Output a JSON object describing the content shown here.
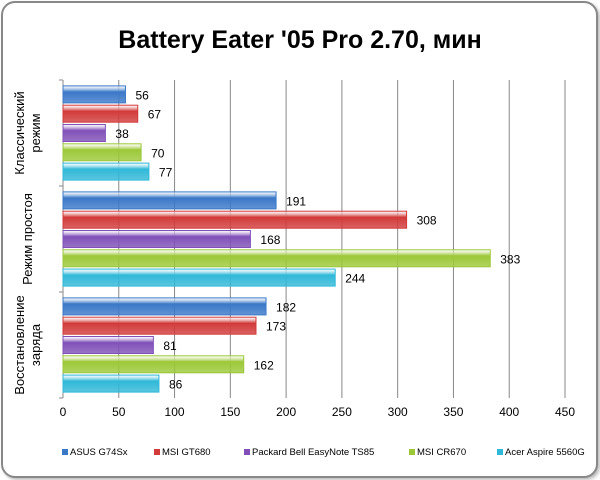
{
  "chart_data": {
    "type": "bar",
    "orientation": "horizontal",
    "title": "Battery Eater '05 Pro 2.70, мин",
    "categories": [
      "Классический режим",
      "Режим простоя",
      "Восстановление заряда"
    ],
    "category_lines": [
      [
        "Классический",
        "режим"
      ],
      [
        "Режим простоя"
      ],
      [
        "Восстановление",
        "заряда"
      ]
    ],
    "series": [
      {
        "name": "ASUS G74Sx",
        "color": "#3a78c8",
        "values": [
          56,
          191,
          182
        ]
      },
      {
        "name": "MSI GT680",
        "color": "#d23a3a",
        "values": [
          67,
          308,
          173
        ]
      },
      {
        "name": "Packard Bell EasyNote TS85",
        "color": "#8050b8",
        "values": [
          38,
          168,
          81
        ]
      },
      {
        "name": "MSI CR670",
        "color": "#9cc838",
        "values": [
          70,
          383,
          162
        ]
      },
      {
        "name": "Acer Aspire 5560G",
        "color": "#30b8d8",
        "values": [
          77,
          244,
          86
        ]
      }
    ],
    "xlim": [
      0,
      450
    ],
    "xticks": [
      0,
      50,
      100,
      150,
      200,
      250,
      300,
      350,
      400,
      450
    ],
    "grid": true,
    "legend": "bottom"
  }
}
